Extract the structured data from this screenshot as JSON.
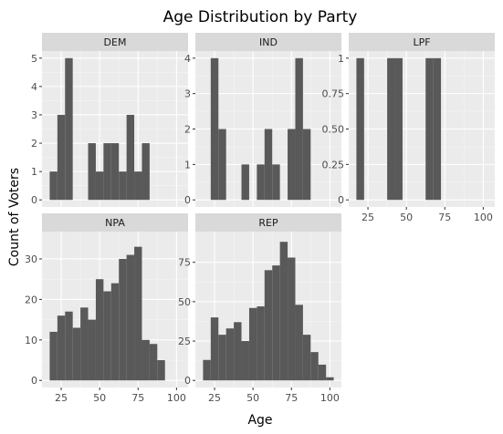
{
  "chart_data": {
    "type": "bar",
    "title": "Age Distribution by Party",
    "xlabel": "Age",
    "ylabel": "Count of Voters",
    "grid": true,
    "colors": {
      "bar": "#595959",
      "panel": "#ebebeb",
      "strip": "#d9d9d9",
      "grid_major": "#ffffff"
    },
    "x_ticks": [
      25,
      50,
      75,
      100
    ],
    "panels": [
      {
        "name": "DEM",
        "ylim": [
          0,
          5
        ],
        "y_ticks": [
          0,
          1,
          2,
          3,
          4,
          5
        ],
        "bins": [
          {
            "x": 20,
            "count": 1
          },
          {
            "x": 25,
            "count": 3
          },
          {
            "x": 30,
            "count": 5
          },
          {
            "x": 45,
            "count": 2
          },
          {
            "x": 50,
            "count": 1
          },
          {
            "x": 55,
            "count": 2
          },
          {
            "x": 60,
            "count": 2
          },
          {
            "x": 65,
            "count": 1
          },
          {
            "x": 70,
            "count": 3
          },
          {
            "x": 75,
            "count": 1
          },
          {
            "x": 80,
            "count": 2
          }
        ]
      },
      {
        "name": "IND",
        "ylim": [
          0,
          4
        ],
        "y_ticks": [
          0,
          1,
          2,
          3,
          4
        ],
        "bins": [
          {
            "x": 25,
            "count": 4
          },
          {
            "x": 30,
            "count": 2
          },
          {
            "x": 45,
            "count": 1
          },
          {
            "x": 55,
            "count": 1
          },
          {
            "x": 60,
            "count": 2
          },
          {
            "x": 65,
            "count": 1
          },
          {
            "x": 75,
            "count": 2
          },
          {
            "x": 80,
            "count": 4
          },
          {
            "x": 85,
            "count": 2
          }
        ]
      },
      {
        "name": "LPF",
        "ylim": [
          0,
          1
        ],
        "y_ticks": [
          0,
          0.25,
          0.5,
          0.75,
          1
        ],
        "y_tick_labels": [
          "0",
          "0.25",
          "0.50",
          "0.75",
          "1"
        ],
        "bins": [
          {
            "x": 20,
            "count": 1
          },
          {
            "x": 40,
            "count": 1
          },
          {
            "x": 45,
            "count": 1
          },
          {
            "x": 65,
            "count": 1
          },
          {
            "x": 70,
            "count": 1
          }
        ]
      },
      {
        "name": "NPA",
        "ylim": [
          0,
          35
        ],
        "y_ticks": [
          0,
          10,
          20,
          30
        ],
        "bins": [
          {
            "x": 20,
            "count": 12
          },
          {
            "x": 25,
            "count": 16
          },
          {
            "x": 30,
            "count": 17
          },
          {
            "x": 35,
            "count": 13
          },
          {
            "x": 40,
            "count": 18
          },
          {
            "x": 45,
            "count": 15
          },
          {
            "x": 50,
            "count": 25
          },
          {
            "x": 55,
            "count": 22
          },
          {
            "x": 60,
            "count": 24
          },
          {
            "x": 65,
            "count": 30
          },
          {
            "x": 70,
            "count": 31
          },
          {
            "x": 75,
            "count": 33
          },
          {
            "x": 80,
            "count": 10
          },
          {
            "x": 85,
            "count": 9
          },
          {
            "x": 90,
            "count": 5
          }
        ]
      },
      {
        "name": "REP",
        "ylim": [
          0,
          90
        ],
        "y_ticks": [
          0,
          25,
          50,
          75
        ],
        "bins": [
          {
            "x": 20,
            "count": 13
          },
          {
            "x": 25,
            "count": 40
          },
          {
            "x": 30,
            "count": 29
          },
          {
            "x": 35,
            "count": 33
          },
          {
            "x": 40,
            "count": 37
          },
          {
            "x": 45,
            "count": 25
          },
          {
            "x": 50,
            "count": 46
          },
          {
            "x": 55,
            "count": 47
          },
          {
            "x": 60,
            "count": 70
          },
          {
            "x": 65,
            "count": 73
          },
          {
            "x": 70,
            "count": 88
          },
          {
            "x": 75,
            "count": 78
          },
          {
            "x": 80,
            "count": 48
          },
          {
            "x": 85,
            "count": 29
          },
          {
            "x": 90,
            "count": 18
          },
          {
            "x": 95,
            "count": 10
          },
          {
            "x": 100,
            "count": 2
          }
        ]
      }
    ]
  }
}
